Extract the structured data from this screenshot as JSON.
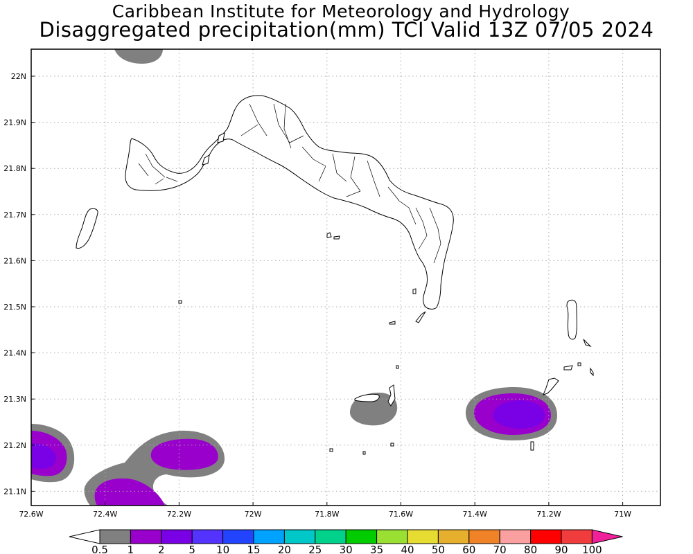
{
  "title": {
    "line1": "Caribbean Institute for Meteorology and Hydrology",
    "line2": "Disaggregated precipitation(mm) TCI Valid 13Z 07/05 2024"
  },
  "axes": {
    "lon_labels": [
      "72.6W",
      "72.4W",
      "72.2W",
      "72W",
      "71.8W",
      "71.6W",
      "71.4W",
      "71.2W",
      "71W"
    ],
    "lon_values": [
      -72.6,
      -72.4,
      -72.2,
      -72.0,
      -71.8,
      -71.6,
      -71.4,
      -71.2,
      -71.0
    ],
    "lat_labels": [
      "22N",
      "21.9N",
      "21.8N",
      "21.7N",
      "21.6N",
      "21.5N",
      "21.4N",
      "21.3N",
      "21.2N",
      "21.1N"
    ],
    "lat_values": [
      22.0,
      21.9,
      21.8,
      21.7,
      21.6,
      21.5,
      21.4,
      21.3,
      21.2,
      21.1
    ],
    "grid": true
  },
  "colorbar": {
    "labels": [
      "0.5",
      "1",
      "2",
      "5",
      "10",
      "15",
      "20",
      "25",
      "30",
      "35",
      "40",
      "50",
      "60",
      "70",
      "80",
      "90",
      "100"
    ],
    "colors": [
      "#808080",
      "#9900cc",
      "#7a00e6",
      "#5533ff",
      "#2244ff",
      "#00a2ff",
      "#00c8c8",
      "#00d28c",
      "#00cc00",
      "#99e033",
      "#e6dc32",
      "#e6af2d",
      "#f08228",
      "#faa0a0",
      "#ff0000",
      "#f03c3c",
      "#f0209a"
    ]
  },
  "colors": {
    "coast": "#000000",
    "precip_low": "#808080",
    "precip_1": "#9900cc",
    "precip_2": "#7a00e6"
  }
}
